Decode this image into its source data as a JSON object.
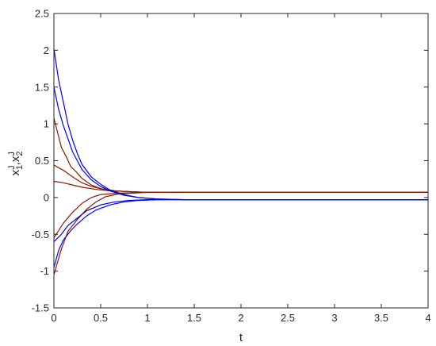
{
  "chart_data": {
    "type": "line",
    "title": "",
    "xlabel": "t",
    "ylabel": "x_1^J , x_2^J",
    "xlim": [
      0,
      4
    ],
    "ylim": [
      -1.5,
      2.5
    ],
    "x_ticks": [
      "0",
      "0.5",
      "1",
      "1.5",
      "2",
      "2.5",
      "3",
      "3.5",
      "4"
    ],
    "y_ticks": [
      "-1.5",
      "-1",
      "-0.5",
      "0",
      "0.5",
      "1",
      "1.5",
      "2",
      "2.5"
    ],
    "grid": false,
    "legend": "none",
    "series": [
      {
        "color": "#8b1a00",
        "values": [
          [
            0,
            1.08
          ],
          [
            0.08,
            0.68
          ],
          [
            0.13,
            0.56
          ],
          [
            0.18,
            0.42
          ],
          [
            0.23,
            0.36
          ],
          [
            0.3,
            0.26
          ],
          [
            0.4,
            0.17
          ],
          [
            0.5,
            0.12
          ],
          [
            0.65,
            0.09
          ],
          [
            0.8,
            0.08
          ],
          [
            1,
            0.07
          ],
          [
            4,
            0.07
          ]
        ]
      },
      {
        "color": "#8b1a00",
        "values": [
          [
            0,
            0.44
          ],
          [
            0.1,
            0.37
          ],
          [
            0.2,
            0.28
          ],
          [
            0.3,
            0.2
          ],
          [
            0.4,
            0.15
          ],
          [
            0.5,
            0.12
          ],
          [
            0.65,
            0.09
          ],
          [
            0.8,
            0.08
          ],
          [
            1,
            0.07
          ],
          [
            4,
            0.07
          ]
        ]
      },
      {
        "color": "#8b1a00",
        "values": [
          [
            0,
            0.22
          ],
          [
            0.1,
            0.2
          ],
          [
            0.2,
            0.17
          ],
          [
            0.3,
            0.14
          ],
          [
            0.45,
            0.11
          ],
          [
            0.6,
            0.09
          ],
          [
            0.8,
            0.08
          ],
          [
            1,
            0.07
          ],
          [
            4,
            0.07
          ]
        ]
      },
      {
        "color": "#8b1a00",
        "values": [
          [
            0,
            -0.55
          ],
          [
            0.1,
            -0.35
          ],
          [
            0.2,
            -0.2
          ],
          [
            0.3,
            -0.08
          ],
          [
            0.4,
            0.0
          ],
          [
            0.5,
            0.04
          ],
          [
            0.7,
            0.06
          ],
          [
            1,
            0.07
          ],
          [
            4,
            0.07
          ]
        ]
      },
      {
        "color": "#8b1a00",
        "values": [
          [
            0,
            -1.05
          ],
          [
            0.08,
            -0.7
          ],
          [
            0.15,
            -0.46
          ],
          [
            0.25,
            -0.3
          ],
          [
            0.35,
            -0.16
          ],
          [
            0.45,
            -0.06
          ],
          [
            0.55,
            0.01
          ],
          [
            0.7,
            0.05
          ],
          [
            1,
            0.07
          ],
          [
            4,
            0.07
          ]
        ]
      },
      {
        "color": "#0000ee",
        "values": [
          [
            0,
            2.02
          ],
          [
            0.05,
            1.6
          ],
          [
            0.1,
            1.3
          ],
          [
            0.15,
            1.0
          ],
          [
            0.2,
            0.78
          ],
          [
            0.25,
            0.6
          ],
          [
            0.3,
            0.45
          ],
          [
            0.4,
            0.28
          ],
          [
            0.5,
            0.18
          ],
          [
            0.6,
            0.1
          ],
          [
            0.75,
            0.04
          ],
          [
            0.9,
            0.0
          ],
          [
            1.1,
            -0.02
          ],
          [
            1.4,
            -0.03
          ],
          [
            4,
            -0.03
          ]
        ]
      },
      {
        "color": "#0000ee",
        "values": [
          [
            0,
            1.5
          ],
          [
            0.05,
            1.2
          ],
          [
            0.1,
            0.98
          ],
          [
            0.15,
            0.8
          ],
          [
            0.2,
            0.62
          ],
          [
            0.25,
            0.5
          ],
          [
            0.3,
            0.38
          ],
          [
            0.4,
            0.24
          ],
          [
            0.5,
            0.15
          ],
          [
            0.6,
            0.09
          ],
          [
            0.75,
            0.03
          ],
          [
            0.9,
            0.0
          ],
          [
            1.1,
            -0.02
          ],
          [
            1.4,
            -0.03
          ],
          [
            4,
            -0.03
          ]
        ]
      },
      {
        "color": "#0000ee",
        "values": [
          [
            0,
            -0.6
          ],
          [
            0.08,
            -0.5
          ],
          [
            0.15,
            -0.38
          ],
          [
            0.25,
            -0.28
          ],
          [
            0.35,
            -0.18
          ],
          [
            0.5,
            -0.1
          ],
          [
            0.65,
            -0.06
          ],
          [
            0.8,
            -0.04
          ],
          [
            1,
            -0.03
          ],
          [
            4,
            -0.03
          ]
        ]
      },
      {
        "color": "#0000ee",
        "values": [
          [
            0,
            -0.95
          ],
          [
            0.05,
            -0.72
          ],
          [
            0.1,
            -0.58
          ],
          [
            0.18,
            -0.45
          ],
          [
            0.25,
            -0.36
          ],
          [
            0.35,
            -0.25
          ],
          [
            0.45,
            -0.17
          ],
          [
            0.6,
            -0.1
          ],
          [
            0.75,
            -0.06
          ],
          [
            0.9,
            -0.04
          ],
          [
            1.1,
            -0.03
          ],
          [
            4,
            -0.03
          ]
        ]
      }
    ]
  }
}
